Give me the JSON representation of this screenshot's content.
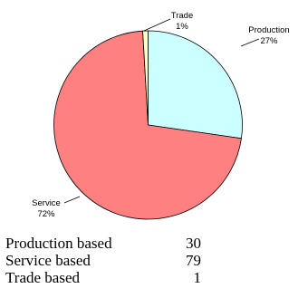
{
  "chart_data": {
    "type": "pie",
    "slices": [
      {
        "category": "Production",
        "percent": "27%",
        "value": 30,
        "color": "#ccffff"
      },
      {
        "category": "Service",
        "percent": "72%",
        "value": 79,
        "color": "#ff8080"
      },
      {
        "category": "Trade",
        "percent": "1%",
        "value": 1,
        "color": "#ffffcc"
      }
    ],
    "start_angle_deg": 0,
    "direction": "clockwise",
    "legend": "none",
    "summary_rows": [
      {
        "label": "Production based",
        "value": "30"
      },
      {
        "label": "Service based",
        "value": "79"
      },
      {
        "label": "Trade based",
        "value": "1"
      }
    ]
  }
}
